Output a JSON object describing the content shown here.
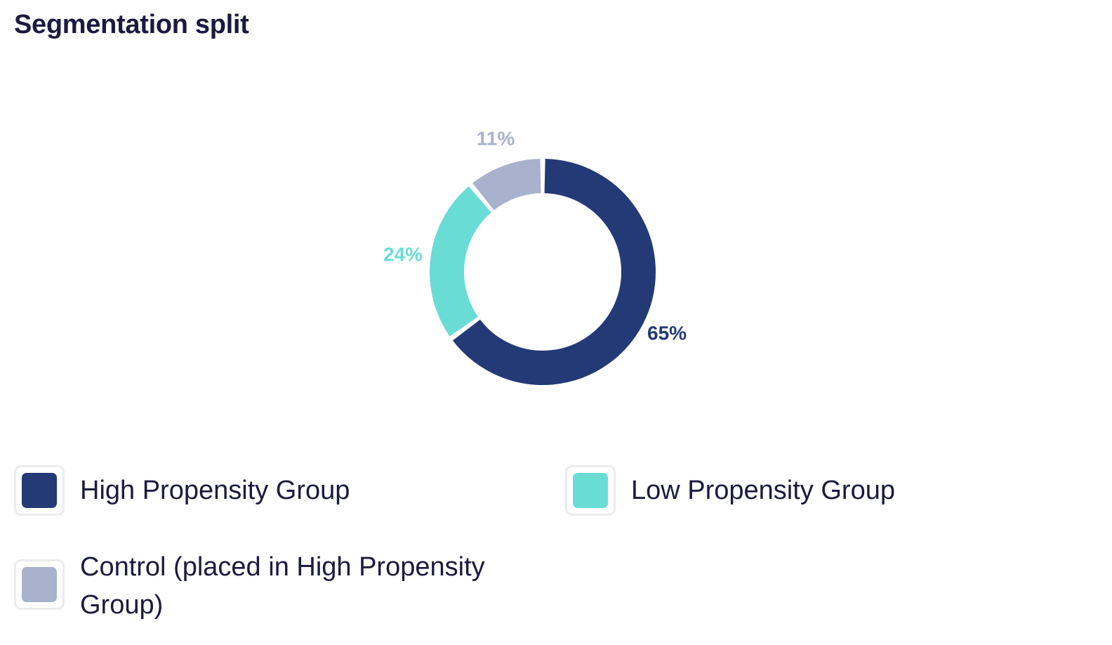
{
  "title": "Segmentation split",
  "colors": {
    "high": "#243a76",
    "low": "#6adcd6",
    "control": "#a9b2cc"
  },
  "chart_data": {
    "type": "pie",
    "variant": "donut",
    "title": "Segmentation split",
    "series": [
      {
        "name": "High Propensity Group",
        "value": 65,
        "label": "65%",
        "color": "#243a76"
      },
      {
        "name": "Low Propensity Group",
        "value": 24,
        "label": "24%",
        "color": "#6adcd6"
      },
      {
        "name": "Control (placed in High Propensity Group)",
        "value": 11,
        "label": "11%",
        "color": "#a9b2cc"
      }
    ],
    "legend_placement": "bottom"
  },
  "legend": {
    "items": [
      {
        "label": "High Propensity Group",
        "color": "#243a76"
      },
      {
        "label": "Low Propensity Group",
        "color": "#6adcd6"
      },
      {
        "label": "Control (placed in High Propensity Group)",
        "color": "#a9b2cc"
      }
    ]
  }
}
